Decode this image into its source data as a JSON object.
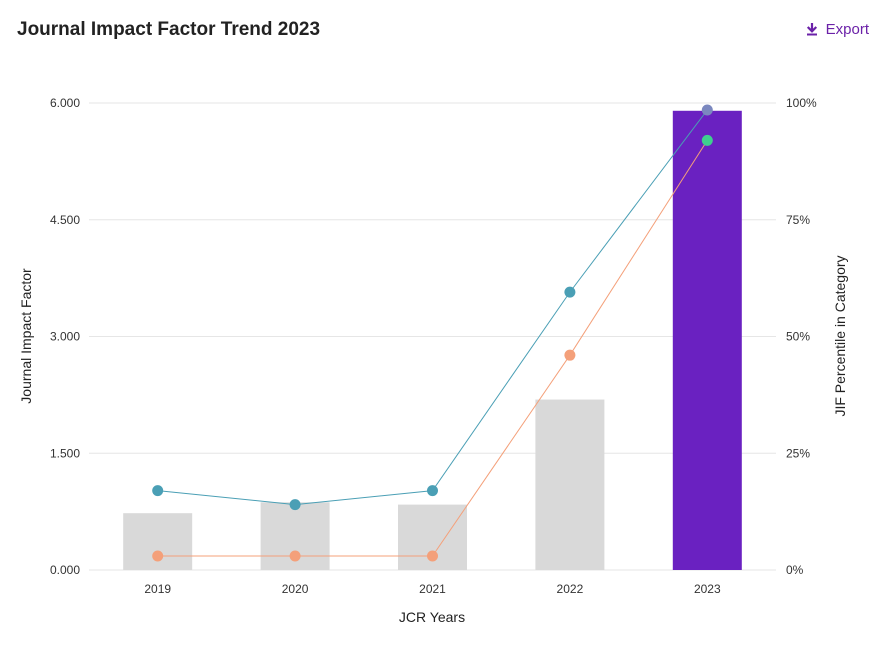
{
  "header": {
    "title": "Journal Impact Factor Trend 2023",
    "export_label": "Export",
    "export_icon": "download-icon"
  },
  "chart_data": {
    "type": "bar",
    "categories": [
      "2019",
      "2020",
      "2021",
      "2022",
      "2023"
    ],
    "xlabel": "JCR Years",
    "ylabel": "Journal Impact Factor",
    "y2label": "JIF Percentile in Category",
    "ylim": [
      0,
      6
    ],
    "y2lim": [
      0,
      100
    ],
    "yticks": [
      "0.000",
      "1.500",
      "3.000",
      "4.500",
      "6.000"
    ],
    "y2ticks": [
      "0%",
      "25%",
      "50%",
      "75%",
      "100%"
    ],
    "grid": true,
    "bars": {
      "values": [
        0.73,
        0.87,
        0.84,
        2.19,
        5.9
      ],
      "colors": [
        "#d9d9d9",
        "#d9d9d9",
        "#d9d9d9",
        "#d9d9d9",
        "#6a21c1"
      ]
    },
    "series": [
      {
        "axis": "right",
        "values": [
          17,
          14,
          17,
          59.5,
          98.5
        ],
        "color": "#4a9fb5",
        "point_colors": [
          "#4a9fb5",
          "#4a9fb5",
          "#4a9fb5",
          "#4a9fb5",
          "#7b88bf"
        ]
      },
      {
        "axis": "right",
        "values": [
          3,
          3,
          3,
          46,
          92
        ],
        "color": "#f4a07a",
        "point_colors": [
          "#f4a07a",
          "#f4a07a",
          "#f4a07a",
          "#f4a07a",
          "#3ecf8e"
        ]
      }
    ]
  }
}
